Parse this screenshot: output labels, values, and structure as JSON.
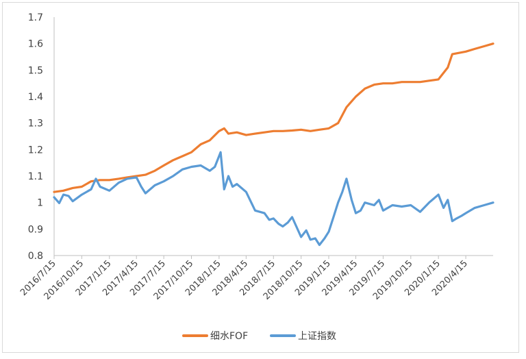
{
  "chart_data": {
    "type": "line",
    "title": "",
    "xlabel": "",
    "ylabel": "",
    "ylim": [
      0.8,
      1.7
    ],
    "yticks": [
      "0.8",
      "0.9",
      "1",
      "1.1",
      "1.2",
      "1.3",
      "1.4",
      "1.5",
      "1.6",
      "1.7"
    ],
    "x_tick_labels": [
      "2016/7/15",
      "2016/10/15",
      "2017/1/15",
      "2017/4/15",
      "2017/7/15",
      "2017/10/15",
      "2018/1/15",
      "2018/4/15",
      "2018/7/15",
      "2018/10/15",
      "2019/1/15",
      "2019/4/15",
      "2019/7/15",
      "2019/10/15",
      "2020/1/15",
      "2020/4/15"
    ],
    "x_range": [
      "2016/7/15",
      "2020/7/15"
    ],
    "grid": false,
    "legend_position": "bottom",
    "series": [
      {
        "name": "细水FOF",
        "color": "#ed7d31",
        "x": [
          "2016/7/15",
          "2016/8/15",
          "2016/9/15",
          "2016/10/15",
          "2016/11/15",
          "2016/12/15",
          "2017/1/15",
          "2017/2/15",
          "2017/3/15",
          "2017/4/15",
          "2017/5/15",
          "2017/6/15",
          "2017/7/15",
          "2017/8/15",
          "2017/9/15",
          "2017/10/15",
          "2017/11/15",
          "2017/12/15",
          "2018/1/15",
          "2018/2/1",
          "2018/2/15",
          "2018/3/15",
          "2018/4/15",
          "2018/5/15",
          "2018/6/15",
          "2018/7/15",
          "2018/8/15",
          "2018/9/15",
          "2018/10/15",
          "2018/11/15",
          "2018/12/15",
          "2019/1/15",
          "2019/2/15",
          "2019/3/15",
          "2019/4/15",
          "2019/5/15",
          "2019/6/15",
          "2019/7/15",
          "2019/8/15",
          "2019/9/15",
          "2019/10/15",
          "2019/11/15",
          "2019/12/15",
          "2020/1/15",
          "2020/2/15",
          "2020/3/1",
          "2020/4/15",
          "2020/5/15",
          "2020/6/15",
          "2020/7/15"
        ],
        "values": [
          1.04,
          1.045,
          1.055,
          1.06,
          1.08,
          1.085,
          1.085,
          1.09,
          1.095,
          1.1,
          1.105,
          1.12,
          1.14,
          1.16,
          1.175,
          1.19,
          1.22,
          1.235,
          1.27,
          1.28,
          1.26,
          1.265,
          1.255,
          1.26,
          1.265,
          1.27,
          1.27,
          1.272,
          1.275,
          1.27,
          1.275,
          1.28,
          1.3,
          1.36,
          1.4,
          1.43,
          1.445,
          1.45,
          1.45,
          1.455,
          1.455,
          1.455,
          1.46,
          1.465,
          1.51,
          1.56,
          1.57,
          1.58,
          1.59,
          1.6
        ]
      },
      {
        "name": "上证指数",
        "color": "#5b9bd5",
        "x": [
          "2016/7/15",
          "2016/8/1",
          "2016/8/15",
          "2016/9/1",
          "2016/9/15",
          "2016/10/15",
          "2016/11/15",
          "2016/12/1",
          "2016/12/15",
          "2017/1/15",
          "2017/2/15",
          "2017/3/15",
          "2017/4/15",
          "2017/5/1",
          "2017/5/15",
          "2017/6/15",
          "2017/7/15",
          "2017/8/15",
          "2017/9/15",
          "2017/10/15",
          "2017/11/15",
          "2017/12/15",
          "2018/1/1",
          "2018/1/20",
          "2018/2/1",
          "2018/2/15",
          "2018/3/1",
          "2018/3/15",
          "2018/4/15",
          "2018/5/15",
          "2018/6/15",
          "2018/7/1",
          "2018/7/15",
          "2018/8/1",
          "2018/8/15",
          "2018/9/1",
          "2018/9/15",
          "2018/10/15",
          "2018/11/1",
          "2018/11/15",
          "2018/12/1",
          "2018/12/15",
          "2019/1/1",
          "2019/1/15",
          "2019/2/1",
          "2019/2/15",
          "2019/3/1",
          "2019/3/15",
          "2019/4/1",
          "2019/4/15",
          "2019/5/1",
          "2019/5/15",
          "2019/6/15",
          "2019/7/1",
          "2019/7/15",
          "2019/8/15",
          "2019/9/15",
          "2019/10/15",
          "2019/11/15",
          "2019/12/15",
          "2020/1/15",
          "2020/2/1",
          "2020/2/15",
          "2020/3/1",
          "2020/3/15",
          "2020/4/1",
          "2020/4/15",
          "2020/5/15",
          "2020/6/15",
          "2020/7/15"
        ],
        "values": [
          1.02,
          0.998,
          1.03,
          1.025,
          1.005,
          1.03,
          1.05,
          1.09,
          1.06,
          1.045,
          1.075,
          1.09,
          1.095,
          1.06,
          1.035,
          1.065,
          1.08,
          1.1,
          1.125,
          1.135,
          1.14,
          1.12,
          1.135,
          1.19,
          1.05,
          1.1,
          1.06,
          1.07,
          1.04,
          0.97,
          0.96,
          0.935,
          0.94,
          0.92,
          0.91,
          0.925,
          0.945,
          0.87,
          0.895,
          0.86,
          0.865,
          0.84,
          0.865,
          0.89,
          0.95,
          1.0,
          1.04,
          1.09,
          1.01,
          0.96,
          0.97,
          1.0,
          0.99,
          1.01,
          0.97,
          0.99,
          0.985,
          0.99,
          0.965,
          1.0,
          1.03,
          0.98,
          1.01,
          0.93,
          0.94,
          0.95,
          0.96,
          0.98,
          0.99,
          1.0
        ]
      }
    ]
  }
}
